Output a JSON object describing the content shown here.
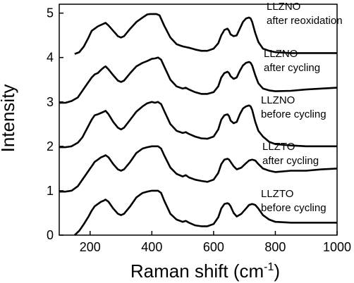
{
  "chart_data": {
    "type": "line",
    "xlabel": "Raman shift (cm",
    "xlabel_sup": "-1",
    "xlabel_close": ")",
    "ylabel": "Intensity",
    "xlim": [
      100,
      1000
    ],
    "ylim": [
      0,
      5.2
    ],
    "xticks": [
      200,
      400,
      600,
      800,
      1000
    ],
    "yticks": [
      0,
      1,
      2,
      3,
      4,
      5
    ],
    "line_color": "#000000",
    "series": [
      {
        "labels": [
          "LLZNO",
          "after reoxidation"
        ],
        "x": [
          150,
          165,
          180,
          195,
          205,
          215,
          225,
          240,
          250,
          260,
          275,
          290,
          300,
          310,
          330,
          350,
          370,
          385,
          395,
          405,
          415,
          425,
          440,
          460,
          480,
          500,
          520,
          540,
          560,
          580,
          600,
          615,
          625,
          635,
          645,
          650,
          655,
          665,
          675,
          685,
          695,
          705,
          715,
          720,
          725,
          735,
          745,
          760,
          780,
          800,
          850,
          900,
          950,
          1000
        ],
        "y": [
          4.08,
          4.12,
          4.25,
          4.45,
          4.6,
          4.65,
          4.7,
          4.75,
          4.78,
          4.72,
          4.6,
          4.48,
          4.45,
          4.48,
          4.65,
          4.8,
          4.9,
          4.97,
          4.98,
          4.98,
          4.98,
          4.95,
          4.72,
          4.45,
          4.3,
          4.25,
          4.22,
          4.18,
          4.15,
          4.15,
          4.2,
          4.32,
          4.5,
          4.62,
          4.65,
          4.6,
          4.52,
          4.48,
          4.5,
          4.65,
          4.8,
          4.88,
          4.9,
          4.88,
          4.8,
          4.55,
          4.35,
          4.2,
          4.15,
          4.12,
          4.1,
          4.1,
          4.1,
          4.1
        ]
      },
      {
        "labels": [
          "LLZNO",
          "after cycling"
        ],
        "x": [
          100,
          120,
          140,
          160,
          175,
          190,
          205,
          215,
          225,
          235,
          245,
          250,
          260,
          275,
          290,
          300,
          310,
          330,
          350,
          370,
          385,
          400,
          410,
          420,
          430,
          440,
          460,
          480,
          500,
          510,
          520,
          540,
          560,
          580,
          600,
          615,
          625,
          635,
          645,
          650,
          655,
          665,
          675,
          685,
          695,
          705,
          715,
          720,
          725,
          735,
          745,
          760,
          780,
          800,
          850,
          900,
          950,
          1000
        ],
        "y": [
          2.98,
          2.98,
          3.02,
          3.1,
          3.25,
          3.4,
          3.55,
          3.62,
          3.65,
          3.72,
          3.78,
          3.8,
          3.73,
          3.6,
          3.48,
          3.45,
          3.48,
          3.65,
          3.8,
          3.88,
          3.92,
          3.97,
          3.98,
          4.0,
          3.95,
          3.8,
          3.5,
          3.35,
          3.3,
          3.32,
          3.28,
          3.22,
          3.18,
          3.18,
          3.22,
          3.35,
          3.55,
          3.65,
          3.68,
          3.65,
          3.58,
          3.52,
          3.55,
          3.7,
          3.82,
          3.88,
          3.9,
          3.88,
          3.82,
          3.6,
          3.42,
          3.3,
          3.26,
          3.24,
          3.25,
          3.28,
          3.3,
          3.32
        ]
      },
      {
        "labels": [
          "LLZNO",
          "before cycling"
        ],
        "x": [
          100,
          120,
          140,
          160,
          175,
          190,
          205,
          215,
          225,
          235,
          245,
          250,
          260,
          275,
          290,
          300,
          310,
          330,
          350,
          370,
          385,
          400,
          410,
          420,
          430,
          440,
          460,
          480,
          500,
          510,
          520,
          540,
          560,
          580,
          600,
          615,
          625,
          635,
          645,
          650,
          655,
          665,
          675,
          685,
          695,
          705,
          715,
          720,
          725,
          735,
          745,
          760,
          780,
          800,
          850,
          900,
          950,
          1000
        ],
        "y": [
          1.98,
          1.98,
          2.0,
          2.08,
          2.2,
          2.4,
          2.6,
          2.7,
          2.72,
          2.75,
          2.78,
          2.8,
          2.72,
          2.55,
          2.42,
          2.38,
          2.42,
          2.6,
          2.78,
          2.9,
          2.97,
          3.0,
          2.98,
          3.0,
          2.95,
          2.8,
          2.5,
          2.35,
          2.3,
          2.32,
          2.28,
          2.22,
          2.18,
          2.17,
          2.22,
          2.38,
          2.6,
          2.7,
          2.72,
          2.68,
          2.58,
          2.52,
          2.55,
          2.72,
          2.85,
          2.9,
          2.92,
          2.9,
          2.82,
          2.55,
          2.35,
          2.22,
          2.1,
          2.05,
          2.02,
          2.0,
          2.0,
          2.0
        ]
      },
      {
        "labels": [
          "LLZTO",
          "after cycling"
        ],
        "x": [
          100,
          120,
          140,
          160,
          175,
          190,
          205,
          215,
          225,
          235,
          245,
          250,
          260,
          275,
          290,
          300,
          310,
          330,
          350,
          370,
          385,
          400,
          410,
          420,
          430,
          440,
          460,
          480,
          500,
          510,
          520,
          540,
          560,
          580,
          600,
          615,
          625,
          635,
          645,
          650,
          655,
          665,
          675,
          690,
          705,
          715,
          725,
          735,
          745,
          760,
          780,
          800,
          850,
          900,
          950,
          1000
        ],
        "y": [
          0.98,
          0.98,
          1.0,
          1.1,
          1.25,
          1.4,
          1.55,
          1.65,
          1.7,
          1.75,
          1.78,
          1.8,
          1.75,
          1.6,
          1.48,
          1.45,
          1.48,
          1.65,
          1.85,
          1.95,
          1.98,
          2.0,
          2.0,
          2.0,
          1.95,
          1.8,
          1.52,
          1.38,
          1.32,
          1.35,
          1.3,
          1.25,
          1.22,
          1.2,
          1.25,
          1.4,
          1.6,
          1.7,
          1.72,
          1.7,
          1.65,
          1.55,
          1.48,
          1.52,
          1.62,
          1.68,
          1.7,
          1.68,
          1.6,
          1.5,
          1.45,
          1.42,
          1.45,
          1.45,
          1.48,
          1.5
        ]
      },
      {
        "labels": [
          "LLZTO",
          "before cycling"
        ],
        "x": [
          150,
          165,
          180,
          195,
          205,
          215,
          225,
          235,
          245,
          250,
          260,
          275,
          290,
          300,
          310,
          330,
          350,
          370,
          385,
          400,
          410,
          420,
          430,
          440,
          460,
          480,
          500,
          510,
          520,
          540,
          560,
          580,
          600,
          615,
          625,
          635,
          645,
          650,
          655,
          665,
          675,
          690,
          705,
          715,
          725,
          735,
          745,
          760,
          780,
          800,
          850,
          900,
          950,
          1000
        ],
        "y": [
          0.0,
          0.1,
          0.25,
          0.42,
          0.55,
          0.65,
          0.7,
          0.75,
          0.78,
          0.8,
          0.75,
          0.6,
          0.48,
          0.45,
          0.48,
          0.65,
          0.85,
          0.95,
          0.98,
          1.0,
          1.0,
          1.0,
          0.95,
          0.78,
          0.48,
          0.35,
          0.3,
          0.32,
          0.28,
          0.22,
          0.2,
          0.2,
          0.25,
          0.4,
          0.6,
          0.7,
          0.72,
          0.7,
          0.65,
          0.5,
          0.42,
          0.48,
          0.6,
          0.68,
          0.7,
          0.68,
          0.6,
          0.45,
          0.35,
          0.3,
          0.28,
          0.28,
          0.28,
          0.28
        ]
      }
    ]
  }
}
